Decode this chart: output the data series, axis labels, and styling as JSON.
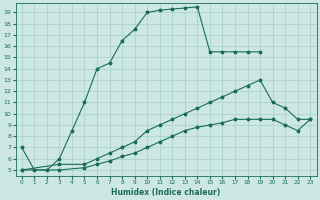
{
  "xlabel": "Humidex (Indice chaleur)",
  "ylabel": "",
  "bg_color": "#cde8e2",
  "grid_color": "#b0d8d0",
  "line_color": "#1a6b5a",
  "xlim": [
    -0.5,
    23.5
  ],
  "ylim": [
    4.5,
    19.8
  ],
  "yticks": [
    5,
    6,
    7,
    8,
    9,
    10,
    11,
    12,
    13,
    14,
    15,
    16,
    17,
    18,
    19
  ],
  "xticks": [
    0,
    1,
    2,
    3,
    4,
    5,
    6,
    7,
    8,
    9,
    10,
    11,
    12,
    13,
    14,
    15,
    16,
    17,
    18,
    19,
    20,
    21,
    22,
    23
  ],
  "line1_x": [
    0,
    1,
    2,
    3,
    4,
    5,
    6,
    7,
    8,
    9,
    10,
    11,
    12,
    13,
    14,
    15,
    16,
    17,
    18,
    19
  ],
  "line1_y": [
    7.0,
    5.0,
    5.0,
    6.0,
    8.5,
    11.0,
    14.0,
    14.5,
    16.5,
    17.5,
    19.0,
    19.2,
    19.3,
    19.4,
    19.5,
    15.5,
    15.5,
    15.5,
    15.5,
    15.5
  ],
  "line2_x": [
    0,
    3,
    5,
    6,
    7,
    8,
    9,
    10,
    11,
    12,
    13,
    14,
    15,
    16,
    17,
    18,
    19,
    20,
    21,
    22,
    23
  ],
  "line2_y": [
    5.0,
    5.5,
    5.5,
    6.0,
    6.5,
    7.0,
    7.5,
    8.5,
    9.0,
    9.5,
    10.0,
    10.5,
    11.0,
    11.5,
    12.0,
    12.5,
    13.0,
    11.0,
    10.5,
    9.5,
    9.5
  ],
  "line3_x": [
    0,
    3,
    5,
    6,
    7,
    8,
    9,
    10,
    11,
    12,
    13,
    14,
    15,
    16,
    17,
    18,
    19,
    20,
    21,
    22,
    23
  ],
  "line3_y": [
    5.0,
    5.0,
    5.2,
    5.5,
    5.8,
    6.2,
    6.5,
    7.0,
    7.5,
    8.0,
    8.5,
    8.8,
    9.0,
    9.2,
    9.5,
    9.5,
    9.5,
    9.5,
    9.0,
    8.5,
    9.5
  ]
}
